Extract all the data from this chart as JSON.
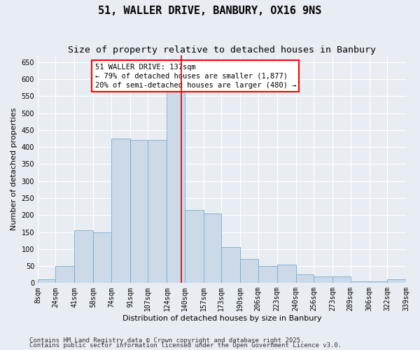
{
  "title": "51, WALLER DRIVE, BANBURY, OX16 9NS",
  "subtitle": "Size of property relative to detached houses in Banbury",
  "xlabel": "Distribution of detached houses by size in Banbury",
  "ylabel": "Number of detached properties",
  "footnote1": "Contains HM Land Registry data © Crown copyright and database right 2025.",
  "footnote2": "Contains public sector information licensed under the Open Government Licence v3.0.",
  "annotation_line1": "51 WALLER DRIVE: 137sqm",
  "annotation_line2": "← 79% of detached houses are smaller (1,877)",
  "annotation_line3": "20% of semi-detached houses are larger (480) →",
  "bar_color": "#ccd9e8",
  "bar_edge_color": "#7aaace",
  "redline_color": "#cc0000",
  "redline_x": 137,
  "ylim": [
    0,
    670
  ],
  "yticks": [
    0,
    50,
    100,
    150,
    200,
    250,
    300,
    350,
    400,
    450,
    500,
    550,
    600,
    650
  ],
  "bin_edges": [
    8,
    24,
    41,
    58,
    74,
    91,
    107,
    124,
    140,
    157,
    173,
    190,
    206,
    223,
    240,
    256,
    273,
    289,
    306,
    322,
    339
  ],
  "bar_heights": [
    10,
    50,
    155,
    150,
    425,
    420,
    420,
    565,
    215,
    205,
    105,
    70,
    50,
    55,
    25,
    20,
    20,
    5,
    5,
    10
  ],
  "bg_color": "#e8edf3",
  "grid_color": "#ffffff",
  "title_fontsize": 11,
  "subtitle_fontsize": 9.5,
  "axis_label_fontsize": 8,
  "tick_fontsize": 7,
  "annotation_fontsize": 7.5,
  "footnote_fontsize": 6.5
}
